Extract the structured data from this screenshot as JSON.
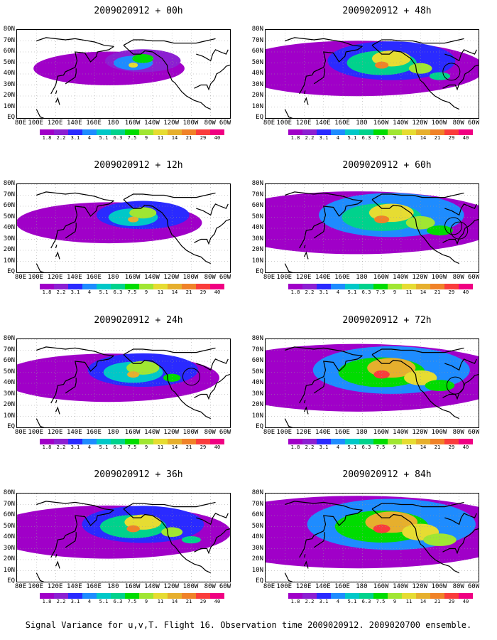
{
  "caption": "Signal Variance for u,v,T. Flight 16. Observation time 2009020912. 2009020700 ensemble.",
  "lat_labels": [
    "80N",
    "70N",
    "60N",
    "50N",
    "40N",
    "30N",
    "20N",
    "10N",
    "EQ"
  ],
  "lon_labels": [
    "80E",
    "100E",
    "120E",
    "140E",
    "160E",
    "180",
    "160W",
    "140W",
    "120W",
    "100W",
    "80W",
    "60W"
  ],
  "colorbar": {
    "labels": [
      "1.8",
      "2.2",
      "3.1",
      "4",
      "5.1",
      "6.3",
      "7.5",
      "9",
      "11",
      "14",
      "21",
      "29",
      "40"
    ],
    "colors": [
      "#a000c8",
      "#8c1fd2",
      "#2a2aff",
      "#1e8cff",
      "#00c8c8",
      "#00d28c",
      "#00dc00",
      "#a0e632",
      "#e6dc32",
      "#e6af2d",
      "#f08228",
      "#fa3c3c",
      "#f00082"
    ]
  },
  "panels": [
    {
      "title": "2009020912 + 00h",
      "intensity": 0.15,
      "circles": []
    },
    {
      "title": "2009020912 + 48h",
      "intensity": 0.6,
      "circles": [
        {
          "lon": -88,
          "lat": 42
        }
      ]
    },
    {
      "title": "2009020912 + 12h",
      "intensity": 0.3,
      "circles": []
    },
    {
      "title": "2009020912 + 60h",
      "intensity": 0.75,
      "circles": [
        {
          "lon": -86,
          "lat": 42
        },
        {
          "lon": -80,
          "lat": 38
        }
      ]
    },
    {
      "title": "2009020912 + 24h",
      "intensity": 0.45,
      "circles": [
        {
          "lon": -100,
          "lat": 46
        }
      ]
    },
    {
      "title": "2009020912 + 72h",
      "intensity": 0.85,
      "circles": [
        {
          "lon": -84,
          "lat": 38
        }
      ]
    },
    {
      "title": "2009020912 + 36h",
      "intensity": 0.55,
      "circles": []
    },
    {
      "title": "2009020912 + 84h",
      "intensity": 0.95,
      "circles": []
    }
  ]
}
